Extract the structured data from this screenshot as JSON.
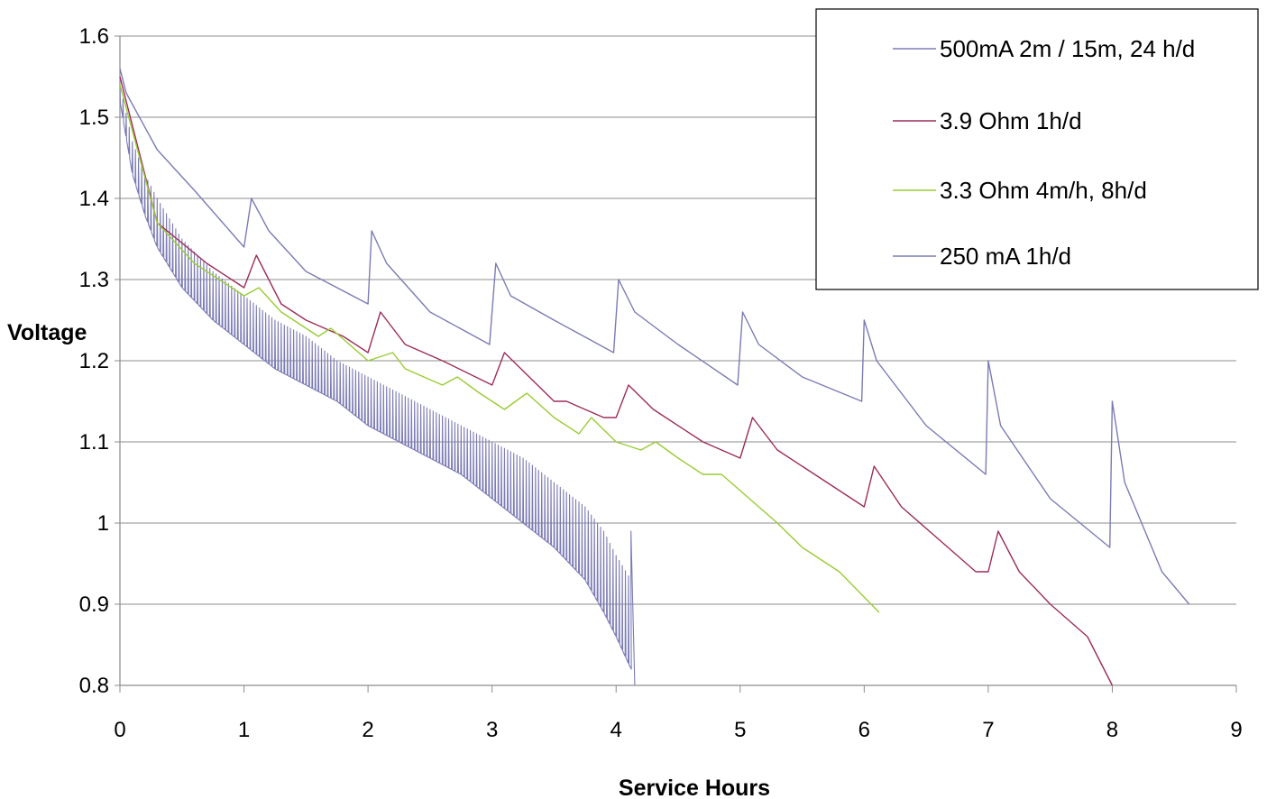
{
  "chart_data": {
    "type": "line",
    "title": "",
    "xlabel": "Service Hours",
    "ylabel": "Voltage",
    "xlim": [
      0,
      9
    ],
    "ylim": [
      0.8,
      1.6
    ],
    "xticks": [
      "0",
      "1",
      "2",
      "3",
      "4",
      "5",
      "6",
      "7",
      "8",
      "9"
    ],
    "yticks": [
      "0.8",
      "0.9",
      "1",
      "1.1",
      "1.2",
      "1.3",
      "1.4",
      "1.5",
      "1.6"
    ],
    "grid": "horizontal",
    "legend_position": "top-right",
    "series": [
      {
        "name": "500mA 2m / 15m, 24 h/d",
        "color": "#7b7bb5",
        "pattern": "pulse",
        "pulse_period_hours": 0.025,
        "upper": [
          [
            0.0,
            1.54
          ],
          [
            0.1,
            1.47
          ],
          [
            0.2,
            1.43
          ],
          [
            0.3,
            1.4
          ],
          [
            0.5,
            1.35
          ],
          [
            0.75,
            1.31
          ],
          [
            1.0,
            1.28
          ],
          [
            1.25,
            1.25
          ],
          [
            1.5,
            1.23
          ],
          [
            1.75,
            1.2
          ],
          [
            2.0,
            1.18
          ],
          [
            2.25,
            1.16
          ],
          [
            2.5,
            1.14
          ],
          [
            2.75,
            1.12
          ],
          [
            3.0,
            1.1
          ],
          [
            3.25,
            1.08
          ],
          [
            3.5,
            1.05
          ],
          [
            3.75,
            1.02
          ],
          [
            3.9,
            0.99
          ],
          [
            4.0,
            0.96
          ],
          [
            4.12,
            0.93
          ]
        ],
        "lower": [
          [
            0.0,
            1.52
          ],
          [
            0.1,
            1.43
          ],
          [
            0.2,
            1.38
          ],
          [
            0.3,
            1.34
          ],
          [
            0.5,
            1.29
          ],
          [
            0.75,
            1.25
          ],
          [
            1.0,
            1.22
          ],
          [
            1.25,
            1.19
          ],
          [
            1.5,
            1.17
          ],
          [
            1.75,
            1.15
          ],
          [
            2.0,
            1.12
          ],
          [
            2.25,
            1.1
          ],
          [
            2.5,
            1.08
          ],
          [
            2.75,
            1.06
          ],
          [
            3.0,
            1.03
          ],
          [
            3.25,
            1.0
          ],
          [
            3.5,
            0.97
          ],
          [
            3.75,
            0.93
          ],
          [
            3.9,
            0.89
          ],
          [
            4.0,
            0.86
          ],
          [
            4.12,
            0.82
          ]
        ],
        "end": [
          [
            4.12,
            0.99
          ],
          [
            4.15,
            0.8
          ]
        ]
      },
      {
        "name": "3.9 Ohm 1h/d",
        "color": "#9b2d5a",
        "pattern": "recovery",
        "points": [
          [
            0.0,
            1.55
          ],
          [
            0.3,
            1.37
          ],
          [
            0.7,
            1.32
          ],
          [
            1.0,
            1.29
          ],
          [
            1.1,
            1.33
          ],
          [
            1.3,
            1.27
          ],
          [
            1.5,
            1.25
          ],
          [
            1.8,
            1.23
          ],
          [
            2.0,
            1.21
          ],
          [
            2.1,
            1.26
          ],
          [
            2.3,
            1.22
          ],
          [
            2.6,
            1.2
          ],
          [
            3.0,
            1.17
          ],
          [
            3.1,
            1.21
          ],
          [
            3.3,
            1.18
          ],
          [
            3.5,
            1.15
          ],
          [
            3.6,
            1.15
          ],
          [
            3.9,
            1.13
          ],
          [
            4.0,
            1.13
          ],
          [
            4.1,
            1.17
          ],
          [
            4.3,
            1.14
          ],
          [
            4.7,
            1.1
          ],
          [
            5.0,
            1.08
          ],
          [
            5.1,
            1.13
          ],
          [
            5.3,
            1.09
          ],
          [
            5.7,
            1.05
          ],
          [
            6.0,
            1.02
          ],
          [
            6.08,
            1.07
          ],
          [
            6.3,
            1.02
          ],
          [
            6.6,
            0.98
          ],
          [
            6.9,
            0.94
          ],
          [
            7.0,
            0.94
          ],
          [
            7.08,
            0.99
          ],
          [
            7.25,
            0.94
          ],
          [
            7.5,
            0.9
          ],
          [
            7.8,
            0.86
          ],
          [
            8.0,
            0.8
          ]
        ]
      },
      {
        "name": "3.3 Ohm 4m/h, 8h/d",
        "color": "#99cc33",
        "pattern": "recovery",
        "points": [
          [
            0.0,
            1.54
          ],
          [
            0.3,
            1.37
          ],
          [
            0.6,
            1.32
          ],
          [
            1.0,
            1.28
          ],
          [
            1.12,
            1.29
          ],
          [
            1.3,
            1.26
          ],
          [
            1.6,
            1.23
          ],
          [
            1.7,
            1.24
          ],
          [
            2.0,
            1.2
          ],
          [
            2.2,
            1.21
          ],
          [
            2.3,
            1.19
          ],
          [
            2.6,
            1.17
          ],
          [
            2.72,
            1.18
          ],
          [
            2.9,
            1.16
          ],
          [
            3.1,
            1.14
          ],
          [
            3.28,
            1.16
          ],
          [
            3.5,
            1.13
          ],
          [
            3.7,
            1.11
          ],
          [
            3.8,
            1.13
          ],
          [
            4.0,
            1.1
          ],
          [
            4.2,
            1.09
          ],
          [
            4.32,
            1.1
          ],
          [
            4.5,
            1.08
          ],
          [
            4.7,
            1.06
          ],
          [
            4.85,
            1.06
          ],
          [
            5.0,
            1.04
          ],
          [
            5.3,
            1.0
          ],
          [
            5.5,
            0.97
          ],
          [
            5.8,
            0.94
          ],
          [
            6.12,
            0.89
          ]
        ]
      },
      {
        "name": "250 mA 1h/d",
        "color": "#7b7bb5",
        "pattern": "recovery",
        "points": [
          [
            0.0,
            1.56
          ],
          [
            0.05,
            1.53
          ],
          [
            0.3,
            1.46
          ],
          [
            0.6,
            1.41
          ],
          [
            1.0,
            1.34
          ],
          [
            1.06,
            1.4
          ],
          [
            1.2,
            1.36
          ],
          [
            1.5,
            1.31
          ],
          [
            2.0,
            1.27
          ],
          [
            2.03,
            1.36
          ],
          [
            2.15,
            1.32
          ],
          [
            2.5,
            1.26
          ],
          [
            2.98,
            1.22
          ],
          [
            3.03,
            1.32
          ],
          [
            3.15,
            1.28
          ],
          [
            3.5,
            1.25
          ],
          [
            3.98,
            1.21
          ],
          [
            4.02,
            1.3
          ],
          [
            4.15,
            1.26
          ],
          [
            4.5,
            1.22
          ],
          [
            4.98,
            1.17
          ],
          [
            5.02,
            1.26
          ],
          [
            5.15,
            1.22
          ],
          [
            5.5,
            1.18
          ],
          [
            5.98,
            1.15
          ],
          [
            6.0,
            1.25
          ],
          [
            6.1,
            1.2
          ],
          [
            6.5,
            1.12
          ],
          [
            6.98,
            1.06
          ],
          [
            7.0,
            1.2
          ],
          [
            7.1,
            1.12
          ],
          [
            7.5,
            1.03
          ],
          [
            7.98,
            0.97
          ],
          [
            8.0,
            1.15
          ],
          [
            8.1,
            1.05
          ],
          [
            8.4,
            0.94
          ],
          [
            8.62,
            0.9
          ]
        ]
      }
    ]
  }
}
